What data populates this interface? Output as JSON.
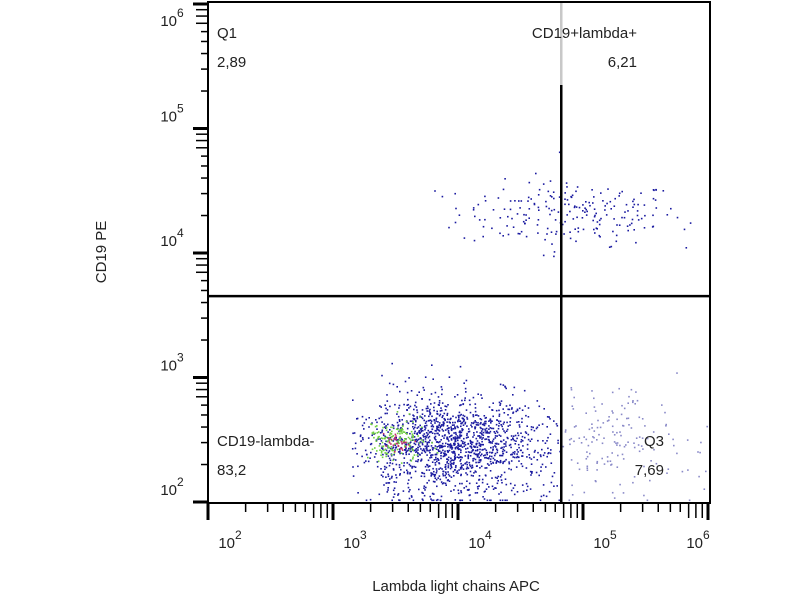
{
  "chart_data": {
    "type": "scatter",
    "title": "",
    "xlabel": "Lambda light chains  APC",
    "ylabel": "CD19 PE",
    "xscale": "log",
    "yscale": "log",
    "xlim": [
      100,
      1000000
    ],
    "ylim": [
      100,
      1000000
    ],
    "x_ticks": [
      {
        "value": 100,
        "base": "10",
        "exp": "2"
      },
      {
        "value": 1000,
        "base": "10",
        "exp": "3"
      },
      {
        "value": 10000,
        "base": "10",
        "exp": "4"
      },
      {
        "value": 100000,
        "base": "10",
        "exp": "5"
      },
      {
        "value": 1000000,
        "base": "10",
        "exp": "6"
      }
    ],
    "y_ticks": [
      {
        "value": 100,
        "base": "10",
        "exp": "2"
      },
      {
        "value": 1000,
        "base": "10",
        "exp": "3"
      },
      {
        "value": 10000,
        "base": "10",
        "exp": "4"
      },
      {
        "value": 100000,
        "base": "10",
        "exp": "5"
      },
      {
        "value": 1000000,
        "base": "10",
        "exp": "6"
      }
    ],
    "gate": {
      "x": 67000,
      "y": 4500
    },
    "quadrants": [
      {
        "name": "Q1",
        "value": "2,89",
        "position": "top-left"
      },
      {
        "name": "CD19+lambda+",
        "value": "6,21",
        "position": "top-right"
      },
      {
        "name": "CD19-lambda-",
        "value": "83,2",
        "position": "bottom-left"
      },
      {
        "name": "Q3",
        "value": "7,69",
        "position": "bottom-right"
      }
    ],
    "populations": [
      {
        "label": "CD19+ upper",
        "log_x_center": 4.9,
        "log_x_spread": 0.45,
        "log_y_center": 4.32,
        "log_y_spread": 0.13,
        "count": 220,
        "log_x_min": 3.6,
        "log_x_max": 6.0,
        "color": "#1a1aa0"
      },
      {
        "label": "CD19- main",
        "log_x_center": 3.95,
        "log_x_spread": 0.38,
        "log_y_center": 2.45,
        "log_y_spread": 0.2,
        "count": 1500,
        "log_x_min": 3.15,
        "log_x_max": 4.82,
        "color": "#1a1aa0"
      },
      {
        "label": "CD19- dense core",
        "log_x_center": 3.5,
        "log_x_spread": 0.12,
        "log_y_center": 2.5,
        "log_y_spread": 0.09,
        "count": 140,
        "log_x_min": 3.2,
        "log_x_max": 4.0,
        "color": "#6fcf3f"
      },
      {
        "label": "CD19- hotspot",
        "log_x_center": 3.5,
        "log_x_spread": 0.06,
        "log_y_center": 2.48,
        "log_y_spread": 0.05,
        "count": 30,
        "log_x_min": 3.3,
        "log_x_max": 3.7,
        "color": "#c0306a"
      },
      {
        "label": "Q3 sparse",
        "log_x_center": 5.2,
        "log_x_spread": 0.3,
        "log_y_center": 2.5,
        "log_y_spread": 0.22,
        "count": 160,
        "log_x_min": 4.83,
        "log_x_max": 6.0,
        "color": "#8a8ac8"
      }
    ],
    "colors": {
      "axis": "#000000",
      "gate": "#000000",
      "gate_faded": "#c8c8c8",
      "low_density": "#1a1aa0",
      "mid_density": "#6fcf3f",
      "high_density": "#c0306a"
    }
  }
}
